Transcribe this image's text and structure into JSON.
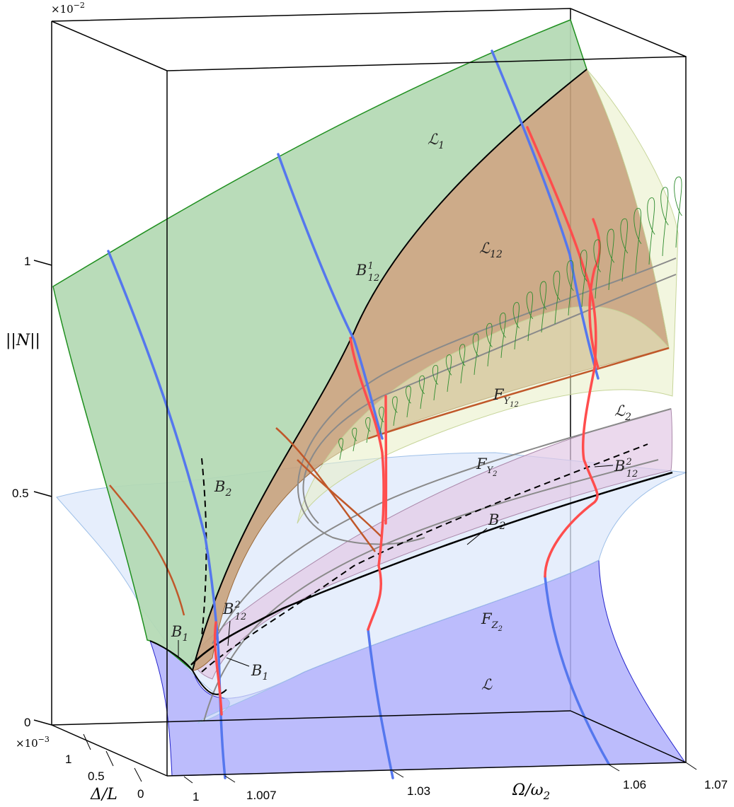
{
  "axes": {
    "z_label": "||N||",
    "z_multiplier": "×10",
    "z_multiplier_exp": "−2",
    "z_ticks": [
      "1",
      "0.5",
      "0"
    ],
    "y_label": "Δ/L",
    "y_multiplier": "×10",
    "y_multiplier_exp": "−3",
    "y_ticks": [
      "1",
      "0.5",
      "0"
    ],
    "x_label": "Ω/ω",
    "x_label_sub": "2",
    "x_ticks": [
      "1",
      "1.007",
      "1.03",
      "1.06",
      "1.07"
    ]
  },
  "surfaces": {
    "L1": {
      "main": "ℒ",
      "sub": "1",
      "color": "#b3d9b3"
    },
    "L12": {
      "main": "ℒ",
      "sub": "12",
      "color": "#c8a27c"
    },
    "L2": {
      "main": "ℒ",
      "sub": "2",
      "color": "#e3c9e6"
    },
    "L": {
      "main": "ℒ",
      "sub": "",
      "color": "#b0b0fb"
    },
    "FY12": {
      "main": "F",
      "sub": "Y",
      "subsub": "12"
    },
    "FY2": {
      "main": "F",
      "sub": "Y",
      "subsub": "2"
    },
    "FZ2": {
      "main": "F",
      "sub": "Z",
      "subsub": "2"
    }
  },
  "curves": {
    "B12_1": {
      "main": "B",
      "sup": "1",
      "sub": "12"
    },
    "B12_2_right": {
      "main": "B",
      "sup": "2",
      "sub": "12"
    },
    "B12_2_left": {
      "main": "B",
      "sup": "2",
      "sub": "12"
    },
    "B2_upper": {
      "main": "B",
      "sub": "2"
    },
    "B2_lower": {
      "main": "B",
      "sub": "2"
    },
    "B1_left": {
      "main": "B",
      "sub": "1"
    },
    "B1_right": {
      "main": "B",
      "sub": "1"
    }
  },
  "colors": {
    "blue_curve": "#5577ee",
    "red_curve": "#ff4d4d",
    "orange_curve": "#c0582a",
    "green_loops": "#2e8b2e"
  }
}
